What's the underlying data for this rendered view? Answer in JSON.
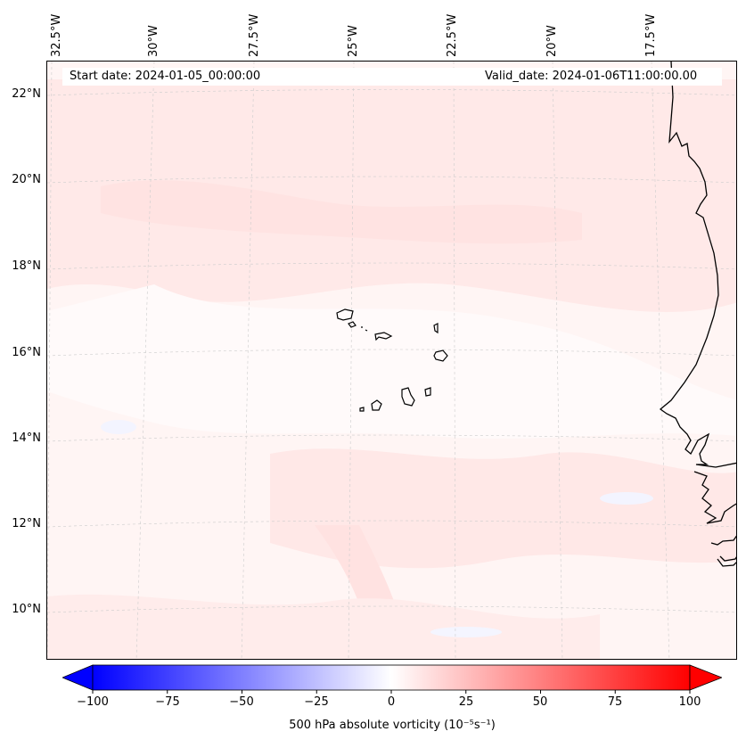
{
  "header": {
    "start_date": "Start date: 2024-01-05_00:00:00",
    "valid_date": "Valid_date: 2024-01-06T11:00:00.00"
  },
  "map": {
    "lon_labels": [
      "32.5°W",
      "30°W",
      "27.5°W",
      "25°W",
      "22.5°W",
      "20°W",
      "17.5°W"
    ],
    "lat_labels": [
      "22°N",
      "20°N",
      "18°N",
      "16°N",
      "14°N",
      "12°N",
      "10°N"
    ],
    "features": [
      "Cape Verde islands",
      "West African coastline"
    ]
  },
  "colorbar": {
    "title": "500 hPa absolute vorticity (10⁻⁵s⁻¹)",
    "ticks": [
      "−100",
      "−75",
      "−50",
      "−25",
      "0",
      "25",
      "50",
      "75",
      "100"
    ],
    "min_color": "#0000ff",
    "mid_color": "#ffffff",
    "max_color": "#ff0000"
  }
}
